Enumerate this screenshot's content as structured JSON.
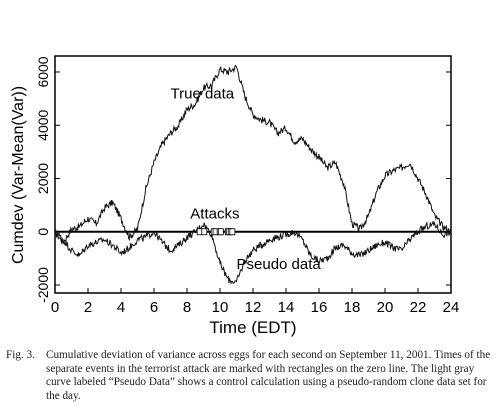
{
  "chart_data": {
    "type": "line",
    "xlabel": "Time (EDT)",
    "ylabel": "Cumdev (Var-Mean(Var))",
    "xlim": [
      0,
      24
    ],
    "ylim": [
      -2300,
      6600
    ],
    "x_ticks": [
      0,
      2,
      4,
      6,
      8,
      10,
      12,
      14,
      16,
      18,
      20,
      22,
      24
    ],
    "y_ticks": [
      -2000,
      0,
      2000,
      4000,
      6000
    ],
    "grid": false,
    "series": [
      {
        "name": "True data",
        "x": [
          0,
          0.5,
          1,
          1.5,
          2,
          2.5,
          3,
          3.5,
          4,
          4.5,
          5,
          5.5,
          6,
          6.5,
          7,
          7.5,
          8,
          8.5,
          9,
          9.5,
          10,
          10.5,
          11,
          11.5,
          12,
          12.5,
          13,
          13.5,
          14,
          14.5,
          15,
          15.5,
          16,
          16.5,
          17,
          17.5,
          18,
          18.5,
          19,
          19.5,
          20,
          20.5,
          21,
          21.5,
          22,
          22.5,
          23,
          23.5,
          24
        ],
        "values": [
          0,
          -400,
          100,
          200,
          500,
          300,
          900,
          1100,
          500,
          -200,
          100,
          1600,
          2600,
          3300,
          3700,
          4000,
          4600,
          4800,
          5400,
          5500,
          6100,
          6000,
          6200,
          5100,
          4400,
          4200,
          4100,
          3700,
          3900,
          3400,
          3500,
          3100,
          2800,
          2400,
          2600,
          1800,
          300,
          100,
          600,
          1500,
          2100,
          2300,
          2400,
          2600,
          2000,
          1400,
          600,
          200,
          0
        ]
      },
      {
        "name": "Pseudo data",
        "x": [
          0,
          0.5,
          1,
          1.5,
          2,
          2.5,
          3,
          3.5,
          4,
          4.5,
          5,
          5.5,
          6,
          6.5,
          7,
          7.5,
          8,
          8.5,
          9,
          9.5,
          10,
          10.5,
          11,
          11.5,
          12,
          12.5,
          13,
          13.5,
          14,
          14.5,
          15,
          15.5,
          16,
          16.5,
          17,
          17.5,
          18,
          18.5,
          19,
          19.5,
          20,
          20.5,
          21,
          21.5,
          22,
          22.5,
          23,
          23.5,
          24
        ],
        "values": [
          0,
          -300,
          -700,
          -900,
          -500,
          -400,
          -300,
          -500,
          -800,
          -600,
          -300,
          -200,
          0,
          -400,
          -700,
          -500,
          -200,
          0,
          300,
          -100,
          -1200,
          -1800,
          -1900,
          -1100,
          -700,
          -500,
          -300,
          -200,
          -100,
          0,
          -300,
          -900,
          -1100,
          -1000,
          -600,
          -500,
          -800,
          -900,
          -700,
          -500,
          -400,
          -600,
          -700,
          -300,
          0,
          200,
          300,
          -100,
          0
        ]
      }
    ],
    "attack_times": [
      8.77,
      9.05,
      9.62,
      9.73,
      9.98,
      10.05,
      10.47,
      10.53,
      10.65,
      10.75
    ],
    "annotations": [
      {
        "text": "True data",
        "x": 7,
        "y": 5000
      },
      {
        "text": "Attacks",
        "x": 8.2,
        "y": 500
      },
      {
        "text": "Pseudo data",
        "x": 11,
        "y": -1400
      }
    ]
  },
  "caption": {
    "label": "Fig. 3.",
    "text": "Cumulative deviation of variance across eggs for each second on September 11, 2001. Times of the separate events in the terrorist attack are marked with rectangles on the zero line. The light gray curve labeled “Pseudo Data” shows a control calculation using a pseudo-random clone data set for the day."
  }
}
